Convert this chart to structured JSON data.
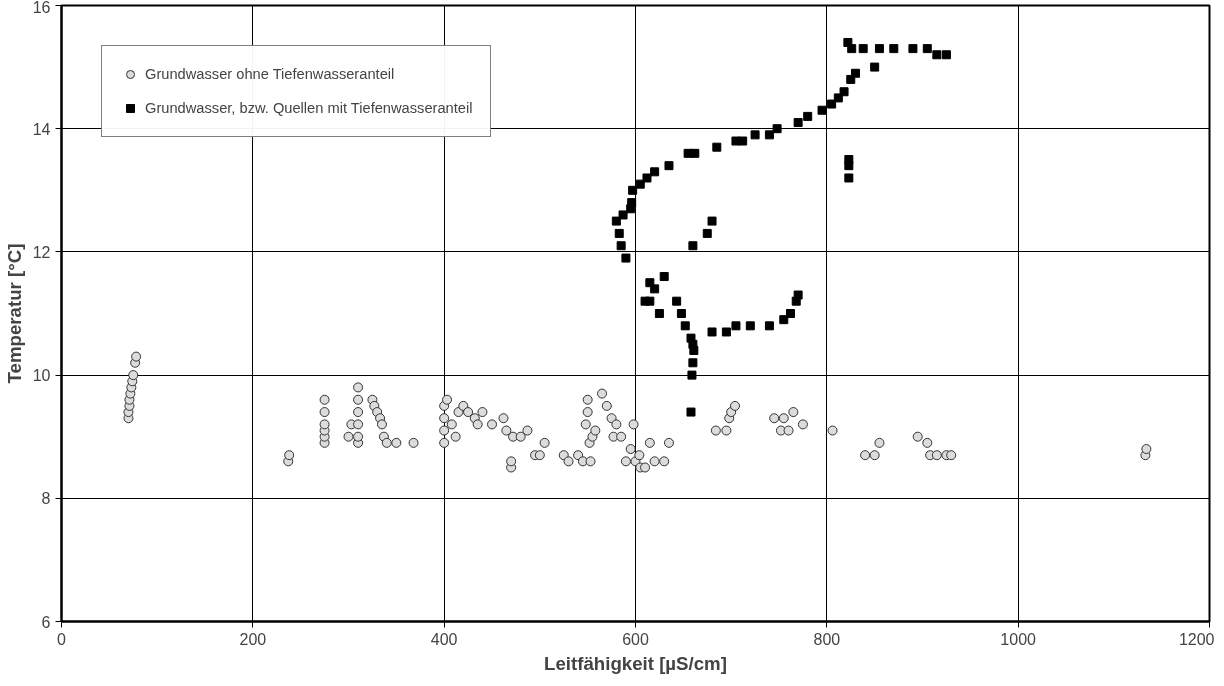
{
  "chart_data": {
    "type": "scatter",
    "xlabel": "Leitfähigkeit [µS/cm]",
    "ylabel": "Temperatur [°C]",
    "xlim": [
      0,
      1200
    ],
    "xticks": [
      0,
      200,
      400,
      600,
      800,
      1000,
      1200
    ],
    "ylim": [
      6,
      16
    ],
    "yticks": [
      6,
      8,
      10,
      12,
      14,
      16
    ],
    "grid": true,
    "legend": "top left",
    "series": [
      {
        "name": "Grundwasser ohne Tiefenwasseranteil",
        "color": "#dcdcdc",
        "marker": "circle",
        "x": [
          70,
          70,
          71,
          71,
          72,
          73,
          74,
          75,
          77,
          78,
          237,
          238,
          275,
          275,
          275,
          275,
          275,
          275,
          300,
          303,
          310,
          310,
          310,
          310,
          310,
          310,
          325,
          327,
          330,
          333,
          335,
          337,
          340,
          350,
          368,
          400,
          400,
          400,
          400,
          403,
          408,
          412,
          415,
          420,
          425,
          432,
          435,
          440,
          450,
          462,
          465,
          470,
          470,
          472,
          480,
          487,
          495,
          500,
          505,
          525,
          530,
          540,
          545,
          548,
          550,
          550,
          552,
          553,
          555,
          558,
          565,
          570,
          575,
          577,
          580,
          585,
          590,
          595,
          600,
          605,
          610,
          620,
          630,
          598,
          604,
          615,
          635,
          684,
          695,
          698,
          700,
          704,
          745,
          752,
          755,
          760,
          765,
          775,
          806,
          840,
          850,
          855,
          895,
          905,
          908,
          915,
          925,
          930,
          1133,
          1134
        ],
        "values": [
          9.3,
          9.4,
          9.5,
          9.6,
          9.7,
          9.8,
          9.9,
          10.0,
          10.2,
          10.3,
          8.6,
          8.7,
          8.9,
          9.0,
          9.1,
          9.2,
          9.4,
          9.6,
          9.0,
          9.2,
          8.9,
          9.0,
          9.2,
          9.4,
          9.6,
          9.8,
          9.6,
          9.5,
          9.4,
          9.3,
          9.2,
          9.0,
          8.9,
          8.9,
          8.9,
          8.9,
          9.1,
          9.3,
          9.5,
          9.6,
          9.2,
          9.0,
          9.4,
          9.5,
          9.4,
          9.3,
          9.2,
          9.4,
          9.2,
          9.3,
          9.1,
          8.5,
          8.6,
          9.0,
          9.0,
          9.1,
          8.7,
          8.7,
          8.9,
          8.7,
          8.6,
          8.7,
          8.6,
          9.2,
          9.4,
          9.6,
          8.9,
          8.6,
          9.0,
          9.1,
          9.7,
          9.5,
          9.3,
          9.0,
          9.2,
          9.0,
          8.6,
          8.8,
          8.6,
          8.5,
          8.5,
          8.6,
          8.6,
          9.2,
          8.7,
          8.9,
          8.9,
          9.1,
          9.1,
          9.3,
          9.4,
          9.5,
          9.3,
          9.1,
          9.3,
          9.1,
          9.4,
          9.2,
          9.1,
          8.7,
          8.7,
          8.9,
          9.0,
          8.9,
          8.7,
          8.7,
          8.7,
          8.7,
          8.7,
          8.8
        ]
      },
      {
        "name": "Grundwasser, bzw. Quellen mit Tiefenwasseranteil",
        "color": "#000000",
        "marker": "square",
        "x": [
          590,
          585,
          583,
          580,
          587,
          595,
          596,
          597,
          605,
          612,
          620,
          635,
          655,
          662,
          685,
          705,
          712,
          725,
          740,
          748,
          770,
          780,
          795,
          805,
          812,
          818,
          825,
          830,
          822,
          826,
          838,
          855,
          870,
          890,
          905,
          915,
          925,
          850,
          823,
          823,
          823,
          660,
          675,
          680,
          615,
          630,
          610,
          620,
          625,
          615,
          643,
          648,
          652,
          658,
          660,
          661,
          660,
          659,
          658,
          680,
          695,
          705,
          720,
          740,
          755,
          762,
          768,
          770
        ],
        "values": [
          11.9,
          12.1,
          12.3,
          12.5,
          12.6,
          12.7,
          12.8,
          13.0,
          13.1,
          13.2,
          13.3,
          13.4,
          13.6,
          13.6,
          13.7,
          13.8,
          13.8,
          13.9,
          13.9,
          14.0,
          14.1,
          14.2,
          14.3,
          14.4,
          14.5,
          14.6,
          14.8,
          14.9,
          15.4,
          15.3,
          15.3,
          15.3,
          15.3,
          15.3,
          15.3,
          15.2,
          15.2,
          15.0,
          13.5,
          13.2,
          13.4,
          12.1,
          12.3,
          12.5,
          11.5,
          11.6,
          11.2,
          11.4,
          11.0,
          11.2,
          11.2,
          11.0,
          10.8,
          10.6,
          10.5,
          10.4,
          10.2,
          10.0,
          9.4,
          10.7,
          10.7,
          10.8,
          10.8,
          10.8,
          10.9,
          11.0,
          11.2,
          11.3
        ]
      }
    ]
  }
}
